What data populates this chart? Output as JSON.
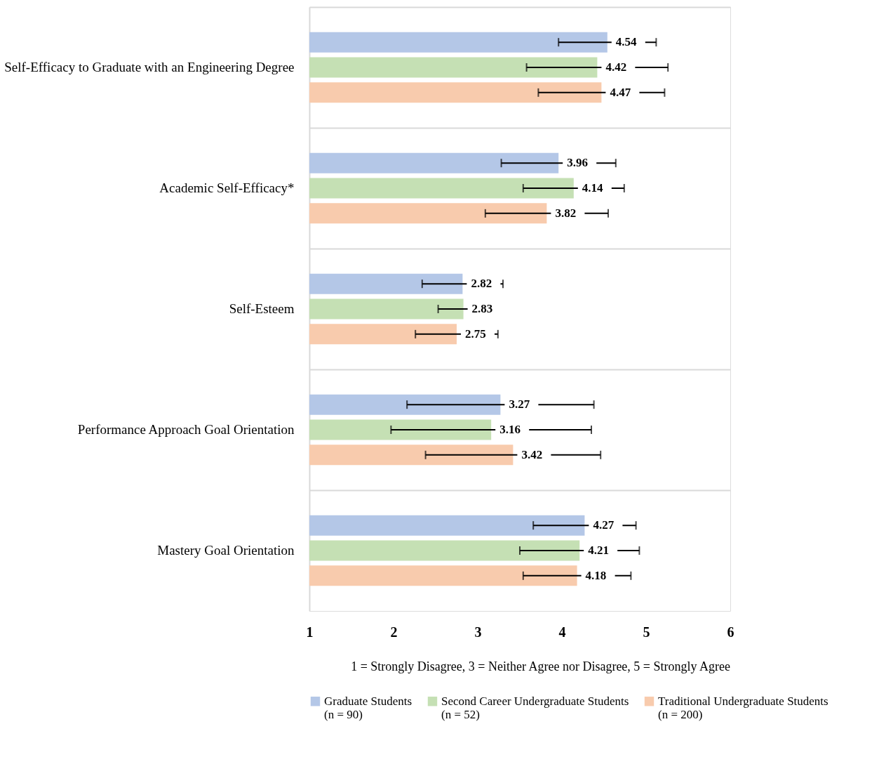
{
  "chart_data": {
    "type": "bar",
    "orientation": "horizontal",
    "categories": [
      "Self-Efficacy to Graduate with an Engineering Degree",
      "Academic Self-Efficacy*",
      "Self-Esteem",
      "Performance Approach Goal Orientation",
      "Mastery Goal Orientation"
    ],
    "series": [
      {
        "name": "Graduate Students\n(n = 90)",
        "color": "#b4c7e7",
        "values": [
          4.54,
          3.96,
          2.82,
          3.27,
          4.27
        ],
        "errors": [
          0.58,
          0.68,
          0.48,
          1.11,
          0.61
        ]
      },
      {
        "name": "Second Career Undergraduate Students\n(n = 52)",
        "color": "#c5e0b4",
        "values": [
          4.42,
          4.14,
          2.83,
          3.16,
          4.21
        ],
        "errors": [
          0.84,
          0.6,
          0.3,
          1.19,
          0.71
        ]
      },
      {
        "name": "Traditional Undergraduate Students\n(n = 200)",
        "color": "#f8cbad",
        "values": [
          4.47,
          3.82,
          2.75,
          3.42,
          4.18
        ],
        "errors": [
          0.75,
          0.73,
          0.49,
          1.04,
          0.64
        ]
      }
    ],
    "xlim": [
      1,
      6
    ],
    "xticks": [
      1,
      2,
      3,
      4,
      5,
      6
    ],
    "data_labels": true,
    "grid": "y",
    "legend": "bottom",
    "annotations": [
      "1 = Strongly Disagree, 3 = Neither Agree nor Disagree, 5 = Strongly Agree"
    ]
  }
}
